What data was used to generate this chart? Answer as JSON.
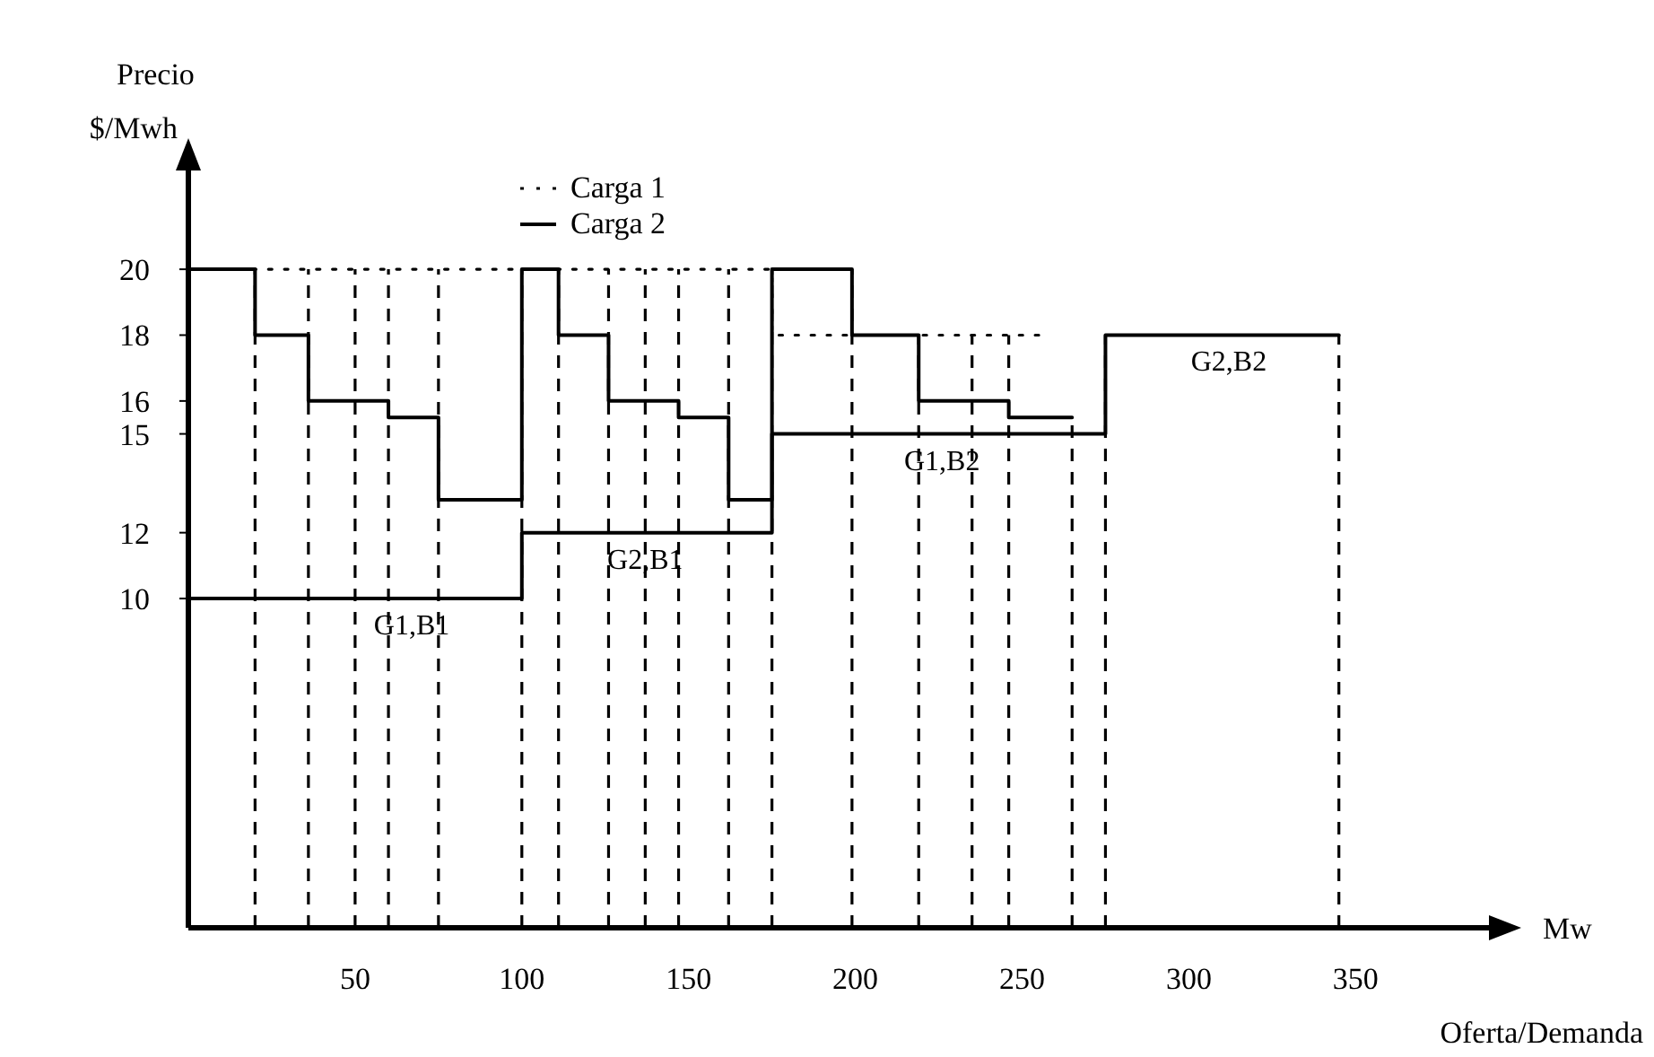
{
  "chart_data": {
    "type": "step",
    "xlabel": "Mw\nOferta/Demanda",
    "ylabel": "Precio\n$/Mwh",
    "xlim": [
      0,
      390
    ],
    "xticks": [
      50,
      100,
      150,
      200,
      250,
      300,
      350
    ],
    "ylim": [
      0,
      23
    ],
    "yticks": [
      10,
      12,
      15,
      16,
      18,
      20
    ],
    "legend": "top",
    "grid": false,
    "series": [
      {
        "color": "#000000",
        "line_style": "solid",
        "x": [
          0,
          100,
          175,
          275,
          345
        ],
        "values": [
          10,
          12,
          15,
          18,
          18
        ]
      },
      {
        "name": "Carga 1",
        "color": "#000000",
        "line_style": "dotted",
        "x": [
          0,
          175,
          255
        ],
        "values": [
          20,
          18,
          18
        ]
      },
      {
        "name": "Carga 2",
        "color": "#000000",
        "line_style": "solid",
        "x": [
          0,
          20,
          36,
          60,
          75,
          100,
          111,
          126,
          147,
          162,
          175,
          199,
          219,
          246,
          265
        ],
        "values": [
          20,
          18,
          16,
          15.5,
          13,
          20,
          18,
          16,
          15.5,
          13,
          20,
          18,
          16,
          15.5,
          15.5
        ]
      }
    ],
    "ref_lines": [
      {
        "axis": "x",
        "value": 20,
        "line_style": "dashed"
      },
      {
        "axis": "x",
        "value": 36,
        "line_style": "dashed"
      },
      {
        "axis": "x",
        "value": 50,
        "line_style": "dashed"
      },
      {
        "axis": "x",
        "value": 60,
        "line_style": "dashed"
      },
      {
        "axis": "x",
        "value": 75,
        "line_style": "dashed"
      },
      {
        "axis": "x",
        "value": 100,
        "line_style": "dashed"
      },
      {
        "axis": "x",
        "value": 111,
        "line_style": "dashed"
      },
      {
        "axis": "x",
        "value": 126,
        "line_style": "dashed"
      },
      {
        "axis": "x",
        "value": 137,
        "line_style": "dashed"
      },
      {
        "axis": "x",
        "value": 147,
        "line_style": "dashed"
      },
      {
        "axis": "x",
        "value": 162,
        "line_style": "dashed"
      },
      {
        "axis": "x",
        "value": 175,
        "line_style": "dashed"
      },
      {
        "axis": "x",
        "value": 199,
        "line_style": "dashed"
      },
      {
        "axis": "x",
        "value": 219,
        "line_style": "dashed"
      },
      {
        "axis": "x",
        "value": 235,
        "line_style": "dashed"
      },
      {
        "axis": "x",
        "value": 246,
        "line_style": "dashed"
      },
      {
        "axis": "x",
        "value": 265,
        "line_style": "dashed"
      },
      {
        "axis": "x",
        "value": 275,
        "line_style": "dashed"
      },
      {
        "axis": "x",
        "value": 345,
        "line_style": "dashed"
      }
    ],
    "annotations": [
      {
        "text": "G1,B1",
        "x": 67,
        "y": 10
      },
      {
        "text": "G2,B1",
        "x": 137,
        "y": 12
      },
      {
        "text": "G1,B2",
        "x": 226,
        "y": 15
      },
      {
        "text": "G2,B2",
        "x": 312,
        "y": 18
      }
    ]
  }
}
